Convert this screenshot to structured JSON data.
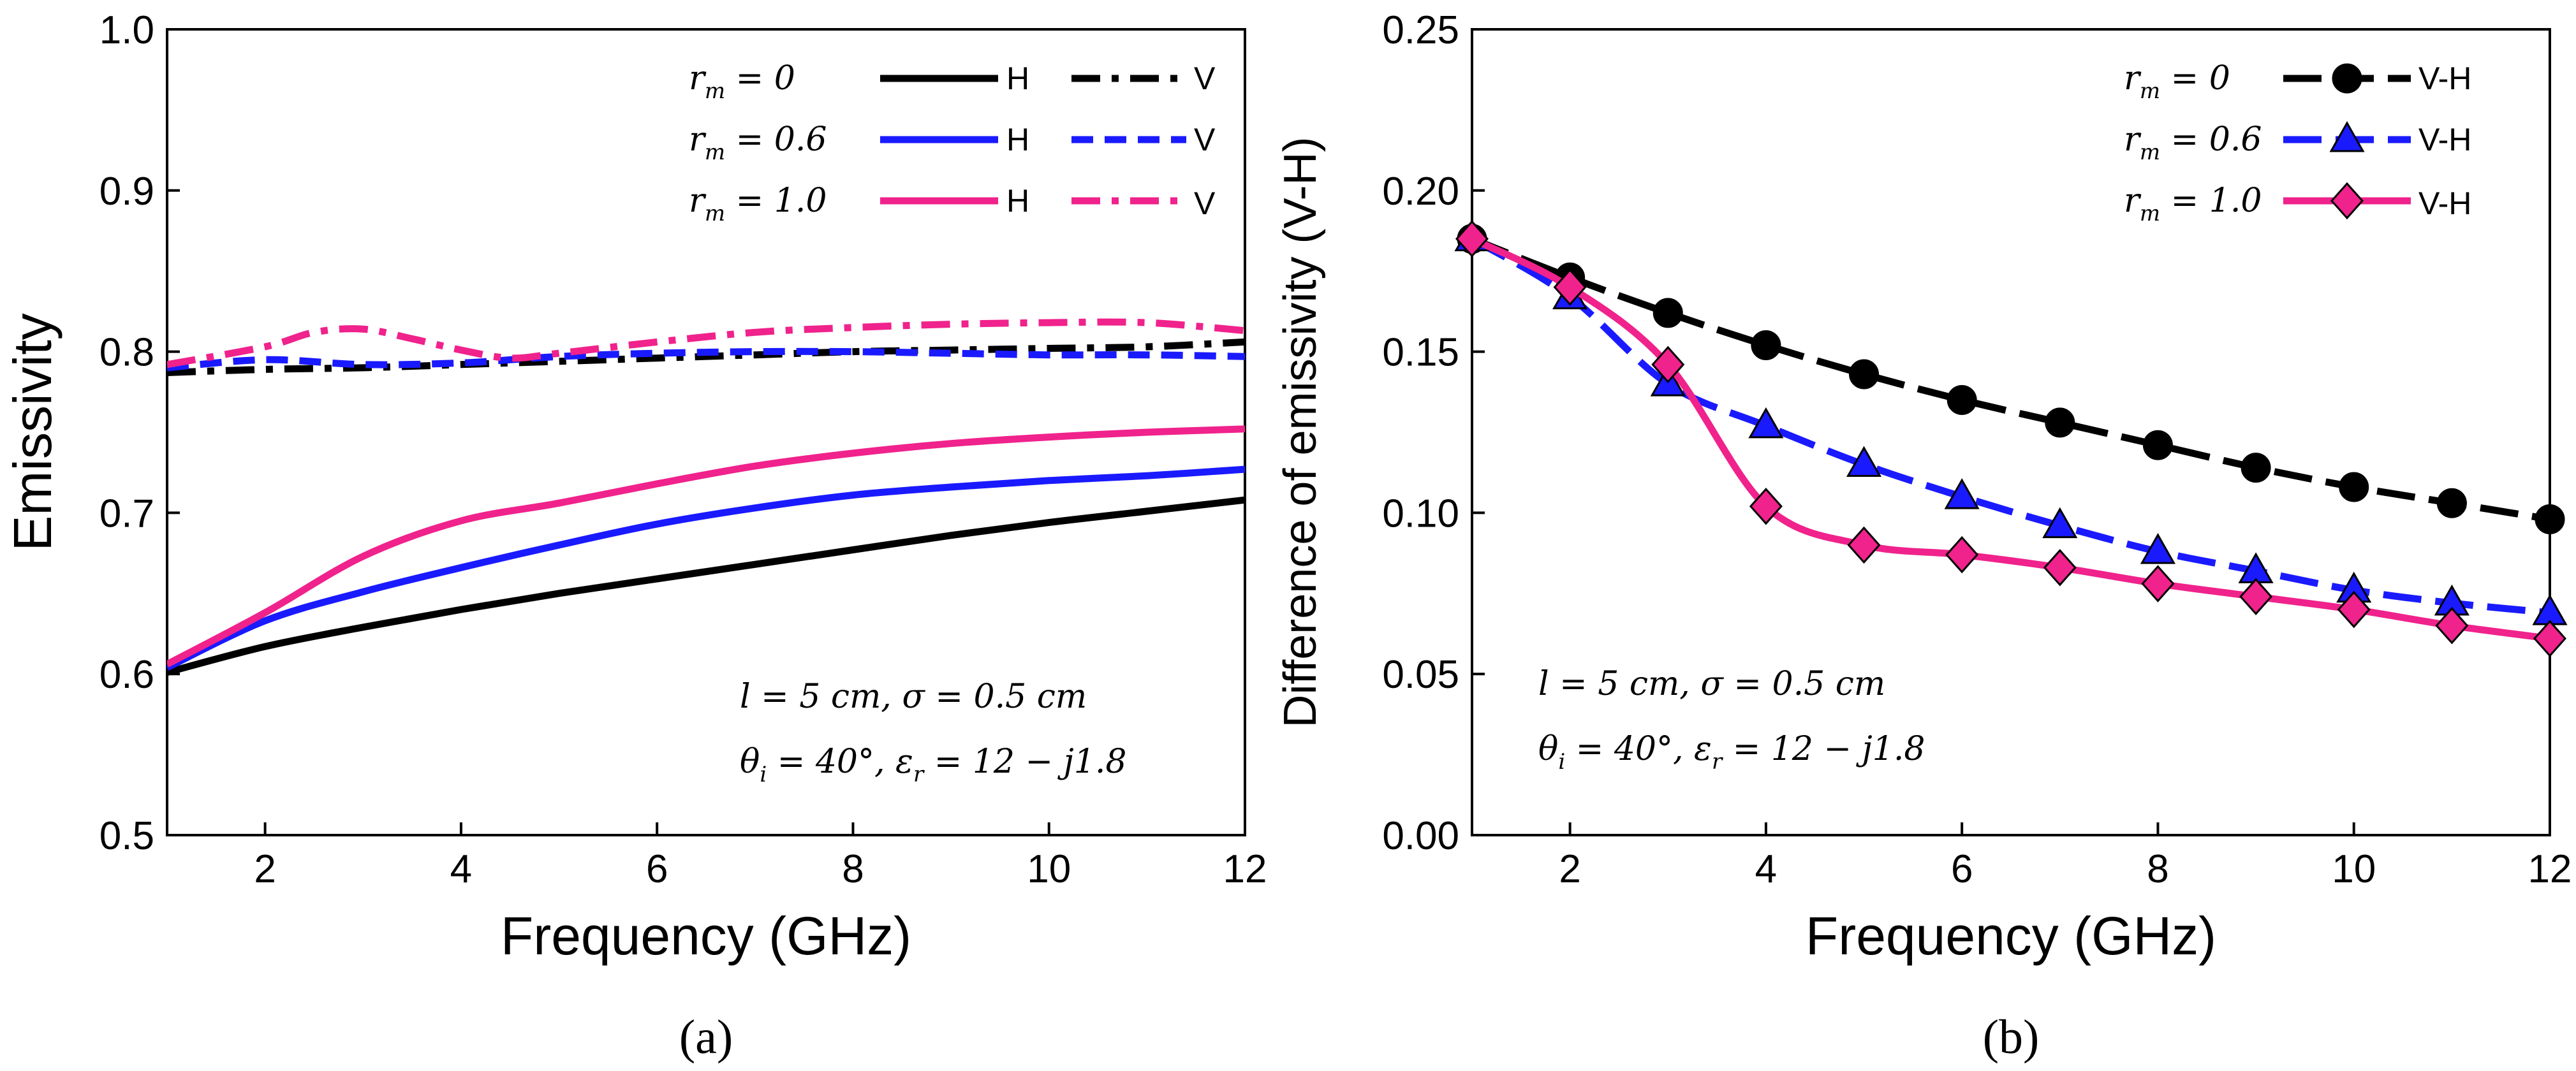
{
  "figure": {
    "caption_a": "(a)",
    "caption_b": "(b)"
  },
  "chart_data": [
    {
      "type": "line",
      "panel": "a",
      "title": "",
      "xlabel": "Frequency (GHz)",
      "ylabel": "Emissivity",
      "xlim": [
        1,
        12
      ],
      "ylim": [
        0.5,
        1.0
      ],
      "xticks": [
        2,
        4,
        6,
        8,
        10,
        12
      ],
      "yticks": [
        0.5,
        0.6,
        0.7,
        0.8,
        0.9,
        1.0
      ],
      "legend_position": "top-right",
      "annotation_lines": [
        "l = 5 cm, σ = 0.5 cm",
        "θi = 40°, εr = 12 − j1.8"
      ],
      "series": [
        {
          "name": "rm = 0 H",
          "legend_text": "rm = 0",
          "pol": "H",
          "color": "#000000",
          "dash": "solid",
          "x": [
            1,
            2,
            3,
            4,
            5,
            6,
            7,
            8,
            9,
            10,
            11,
            12
          ],
          "values": [
            0.601,
            0.617,
            0.629,
            0.64,
            0.65,
            0.659,
            0.668,
            0.677,
            0.686,
            0.694,
            0.701,
            0.708
          ]
        },
        {
          "name": "rm = 0 V",
          "legend_text": "",
          "pol": "V",
          "color": "#000000",
          "dash": "dashdot",
          "x": [
            1,
            2,
            3,
            4,
            5,
            6,
            7,
            8,
            9,
            10,
            11,
            12
          ],
          "values": [
            0.787,
            0.789,
            0.79,
            0.792,
            0.794,
            0.796,
            0.798,
            0.8,
            0.801,
            0.802,
            0.803,
            0.806
          ]
        },
        {
          "name": "rm = 0.6 H",
          "legend_text": "rm = 0.6",
          "pol": "H",
          "color": "#1a1aff",
          "dash": "solid",
          "x": [
            1,
            2,
            3,
            4,
            5,
            6,
            7,
            8,
            9,
            10,
            11,
            12
          ],
          "values": [
            0.604,
            0.633,
            0.651,
            0.666,
            0.68,
            0.693,
            0.703,
            0.711,
            0.716,
            0.72,
            0.723,
            0.727
          ]
        },
        {
          "name": "rm = 0.6 V",
          "legend_text": "",
          "pol": "V",
          "color": "#1a1aff",
          "dash": "dash",
          "x": [
            1,
            2,
            3,
            4,
            5,
            6,
            7,
            8,
            9,
            10,
            11,
            12
          ],
          "values": [
            0.79,
            0.795,
            0.792,
            0.793,
            0.797,
            0.799,
            0.8,
            0.8,
            0.799,
            0.798,
            0.798,
            0.797
          ]
        },
        {
          "name": "rm = 1.0 H",
          "legend_text": "rm = 1.0",
          "pol": "H",
          "color": "#f0228c",
          "dash": "solid",
          "x": [
            1,
            2,
            3,
            4,
            5,
            6,
            7,
            8,
            9,
            10,
            11,
            12
          ],
          "values": [
            0.606,
            0.638,
            0.673,
            0.695,
            0.706,
            0.718,
            0.729,
            0.737,
            0.743,
            0.747,
            0.75,
            0.752
          ]
        },
        {
          "name": "rm = 1.0 V",
          "legend_text": "",
          "pol": "V",
          "color": "#f0228c",
          "dash": "dashdot",
          "x": [
            1,
            2,
            2.5,
            3,
            3.5,
            4,
            4.5,
            5,
            6,
            7,
            8,
            9,
            10,
            11,
            12
          ],
          "values": [
            0.792,
            0.803,
            0.812,
            0.814,
            0.808,
            0.801,
            0.796,
            0.799,
            0.806,
            0.812,
            0.815,
            0.817,
            0.818,
            0.818,
            0.813
          ]
        }
      ]
    },
    {
      "type": "line",
      "panel": "b",
      "title": "",
      "xlabel": "Frequency (GHz)",
      "ylabel": "Difference of emissivity (V-H)",
      "xlim": [
        1,
        12
      ],
      "ylim": [
        0.0,
        0.25
      ],
      "xticks": [
        2,
        4,
        6,
        8,
        10,
        12
      ],
      "yticks": [
        0.0,
        0.05,
        0.1,
        0.15,
        0.2,
        0.25
      ],
      "ytick_labels": [
        "0.00",
        "0.05",
        "0.10",
        "0.15",
        "0.20",
        "0.25"
      ],
      "legend_position": "top-right",
      "annotation_lines": [
        "l = 5 cm, σ = 0.5 cm",
        "θi = 40°, εr = 12 − j1.8"
      ],
      "series": [
        {
          "name": "rm = 0 V-H",
          "legend_text": "rm = 0",
          "label": "V-H",
          "color": "#000000",
          "marker": "circle",
          "dash": "longdash",
          "x": [
            1,
            2,
            3,
            4,
            5,
            6,
            7,
            8,
            9,
            10,
            11,
            12
          ],
          "values": [
            0.185,
            0.173,
            0.162,
            0.152,
            0.143,
            0.135,
            0.128,
            0.121,
            0.114,
            0.108,
            0.103,
            0.098
          ]
        },
        {
          "name": "rm = 0.6 V-H",
          "legend_text": "rm = 0.6",
          "label": "V-H",
          "color": "#1a1aff",
          "marker": "triangle",
          "dash": "longdash",
          "x": [
            1,
            2,
            3,
            4,
            5,
            6,
            7,
            8,
            9,
            10,
            11,
            12
          ],
          "values": [
            0.185,
            0.167,
            0.14,
            0.127,
            0.115,
            0.105,
            0.096,
            0.088,
            0.082,
            0.076,
            0.072,
            0.069
          ]
        },
        {
          "name": "rm = 1.0 V-H",
          "legend_text": "rm = 1.0",
          "label": "V-H",
          "color": "#f0228c",
          "marker": "diamond",
          "dash": "solid",
          "x": [
            1,
            2,
            3,
            4,
            5,
            6,
            7,
            8,
            9,
            10,
            11,
            12
          ],
          "values": [
            0.185,
            0.17,
            0.146,
            0.102,
            0.09,
            0.087,
            0.083,
            0.078,
            0.074,
            0.07,
            0.065,
            0.061
          ]
        }
      ]
    }
  ]
}
